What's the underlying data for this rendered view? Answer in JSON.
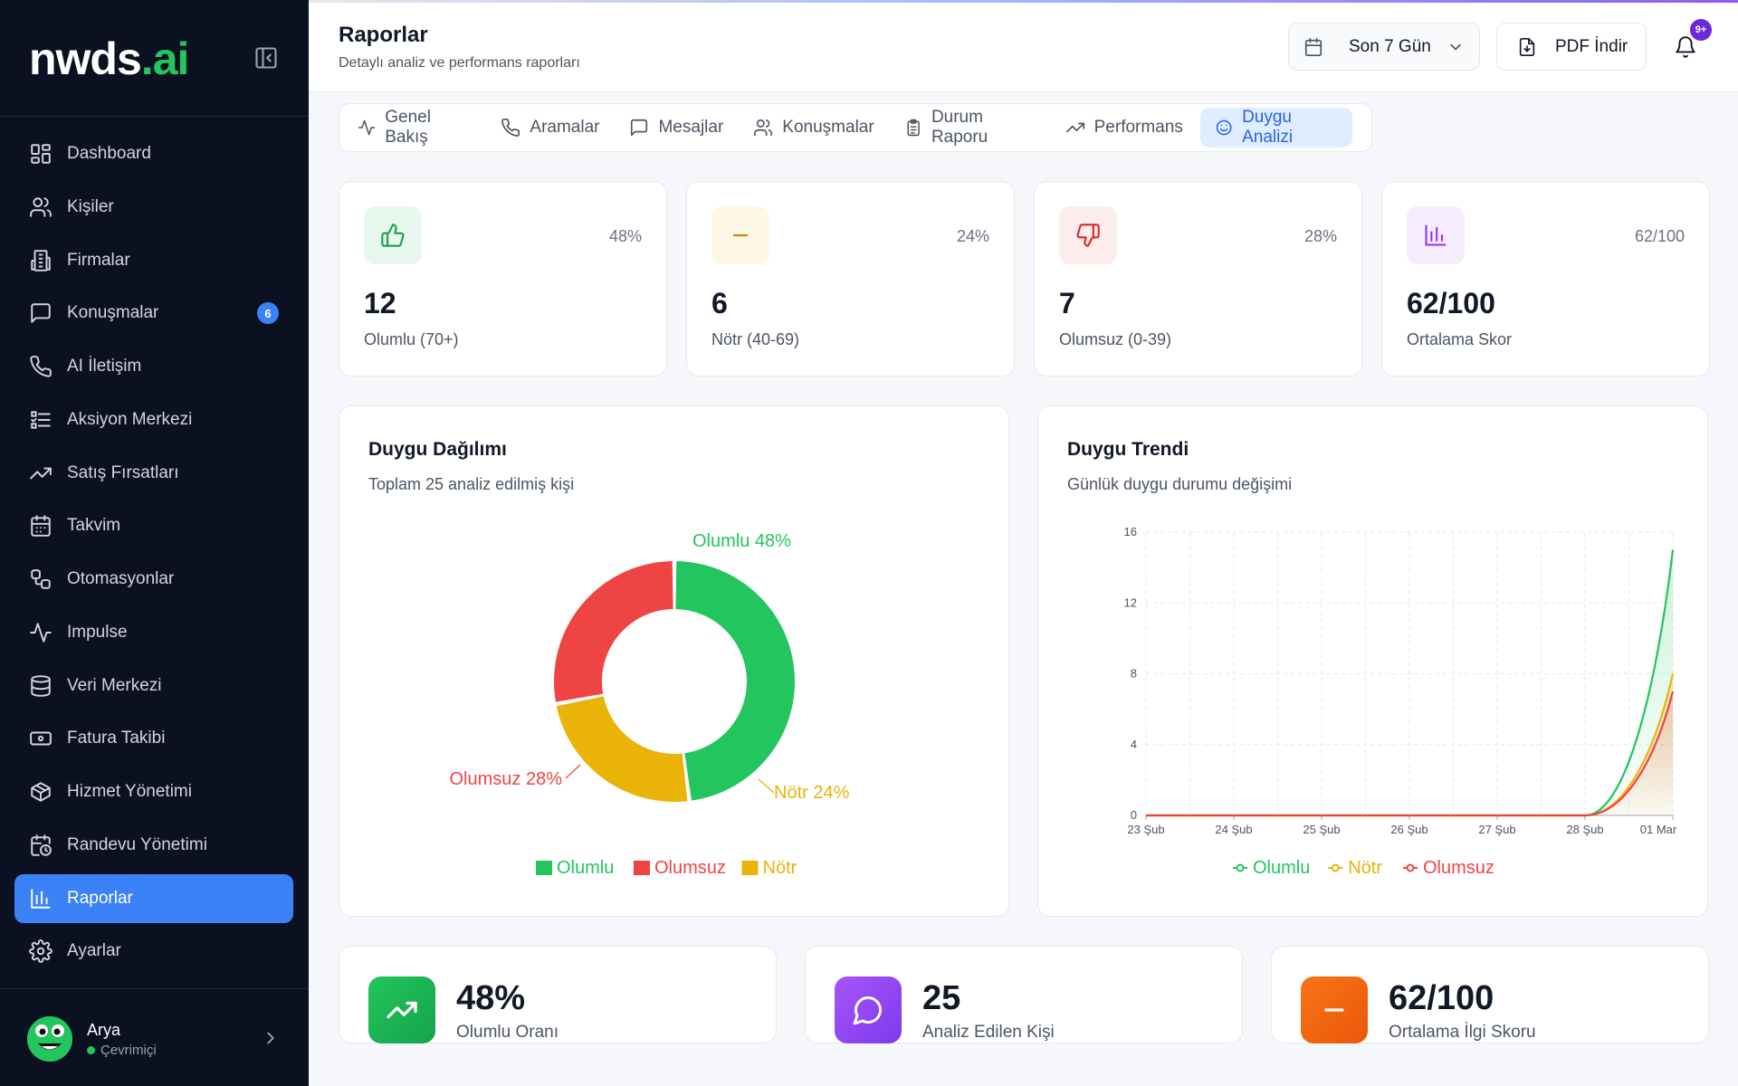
{
  "brand": {
    "name": "nwds",
    "suffix": ".ai"
  },
  "sidebar": {
    "items": [
      {
        "label": "Dashboard",
        "icon": "dashboard-icon"
      },
      {
        "label": "Kişiler",
        "icon": "users-icon"
      },
      {
        "label": "Firmalar",
        "icon": "building-icon"
      },
      {
        "label": "Konuşmalar",
        "icon": "chat-icon",
        "badge": "6"
      },
      {
        "label": "AI İletişim",
        "icon": "phone-icon"
      },
      {
        "label": "Aksiyon Merkezi",
        "icon": "checklist-icon"
      },
      {
        "label": "Satış Fırsatları",
        "icon": "trend-icon"
      },
      {
        "label": "Takvim",
        "icon": "calendar-icon"
      },
      {
        "label": "Otomasyonlar",
        "icon": "workflow-icon"
      },
      {
        "label": "Impulse",
        "icon": "pulse-icon"
      },
      {
        "label": "Veri Merkezi",
        "icon": "database-icon"
      },
      {
        "label": "Fatura Takibi",
        "icon": "banknote-icon"
      },
      {
        "label": "Hizmet Yönetimi",
        "icon": "package-icon"
      },
      {
        "label": "Randevu Yönetimi",
        "icon": "calendar-clock-icon"
      },
      {
        "label": "Raporlar",
        "icon": "bar-chart-icon",
        "active": true
      },
      {
        "label": "Ayarlar",
        "icon": "gear-icon"
      }
    ]
  },
  "user": {
    "name": "Arya",
    "status": "Çevrimiçi"
  },
  "header": {
    "title": "Raporlar",
    "subtitle": "Detaylı analiz ve performans raporları",
    "date_range": "Son 7 Gün",
    "pdf_label": "PDF İndir",
    "notif_badge": "9+"
  },
  "tabs": [
    {
      "label": "Genel Bakış",
      "icon": "activity-icon"
    },
    {
      "label": "Aramalar",
      "icon": "phone-icon"
    },
    {
      "label": "Mesajlar",
      "icon": "message-icon"
    },
    {
      "label": "Konuşmalar",
      "icon": "users-icon"
    },
    {
      "label": "Durum Raporu",
      "icon": "clipboard-icon"
    },
    {
      "label": "Performans",
      "icon": "trend-icon"
    },
    {
      "label": "Duygu Analizi",
      "icon": "smile-icon",
      "active": true
    }
  ],
  "stats": [
    {
      "value": "12",
      "label": "Olumlu (70+)",
      "pct": "48%",
      "icon": "thumbs-up-icon",
      "color": "#16a34a",
      "bg": "#e8f8ee"
    },
    {
      "value": "6",
      "label": "Nötr (40-69)",
      "pct": "24%",
      "icon": "minus-icon",
      "color": "#ca8a04",
      "bg": "#fef7e6"
    },
    {
      "value": "7",
      "label": "Olumsuz (0-39)",
      "pct": "28%",
      "icon": "thumbs-down-icon",
      "color": "#dc2626",
      "bg": "#fdecec"
    },
    {
      "value": "62/100",
      "label": "Ortalama Skor",
      "pct": "62/100",
      "icon": "bar-chart-icon",
      "color": "#9333ea",
      "bg": "#f5edfe"
    }
  ],
  "donut": {
    "title": "Duygu Dağılımı",
    "subtitle": "Toplam 25 analiz edilmiş kişi",
    "chart_data": {
      "type": "pie",
      "categories": [
        "Olumlu",
        "Nötr",
        "Olumsuz"
      ],
      "values": [
        48,
        24,
        28
      ],
      "labels": [
        "Olumlu 48%",
        "Nötr 24%",
        "Olumsuz 28%"
      ],
      "legend": [
        "Olumlu",
        "Olumsuz",
        "Nötr"
      ],
      "colors": {
        "Olumlu": "#22c55e",
        "Nötr": "#eab308",
        "Olumsuz": "#ef4444"
      }
    }
  },
  "trend": {
    "title": "Duygu Trendi",
    "subtitle": "Günlük duygu durumu değişimi",
    "chart_data": {
      "type": "area",
      "x": [
        "23 Şub",
        "24 Şub",
        "25 Şub",
        "26 Şub",
        "27 Şub",
        "28 Şub",
        "01 Mar"
      ],
      "series": [
        {
          "name": "Olumlu",
          "values": [
            0,
            0,
            0,
            0,
            0,
            0,
            15
          ],
          "color": "#22c55e"
        },
        {
          "name": "Nötr",
          "values": [
            0,
            0,
            0,
            0,
            0,
            0,
            8
          ],
          "color": "#eab308"
        },
        {
          "name": "Olumsuz",
          "values": [
            0,
            0,
            0,
            0,
            0,
            0,
            7
          ],
          "color": "#ef4444"
        }
      ],
      "ylim": [
        0,
        16
      ],
      "yticks": [
        "0",
        "4",
        "8",
        "12",
        "16"
      ],
      "legend": [
        "Olumlu",
        "Nötr",
        "Olumsuz"
      ],
      "grid": true,
      "legend_position": "bottom"
    }
  },
  "summary": [
    {
      "value": "48%",
      "label": "Olumlu Oranı",
      "icon": "trend-up-icon"
    },
    {
      "value": "25",
      "label": "Analiz Edilen Kişi",
      "icon": "message-circle-icon"
    },
    {
      "value": "62/100",
      "label": "Ortalama İlgi Skoru",
      "icon": "minus-icon"
    }
  ]
}
